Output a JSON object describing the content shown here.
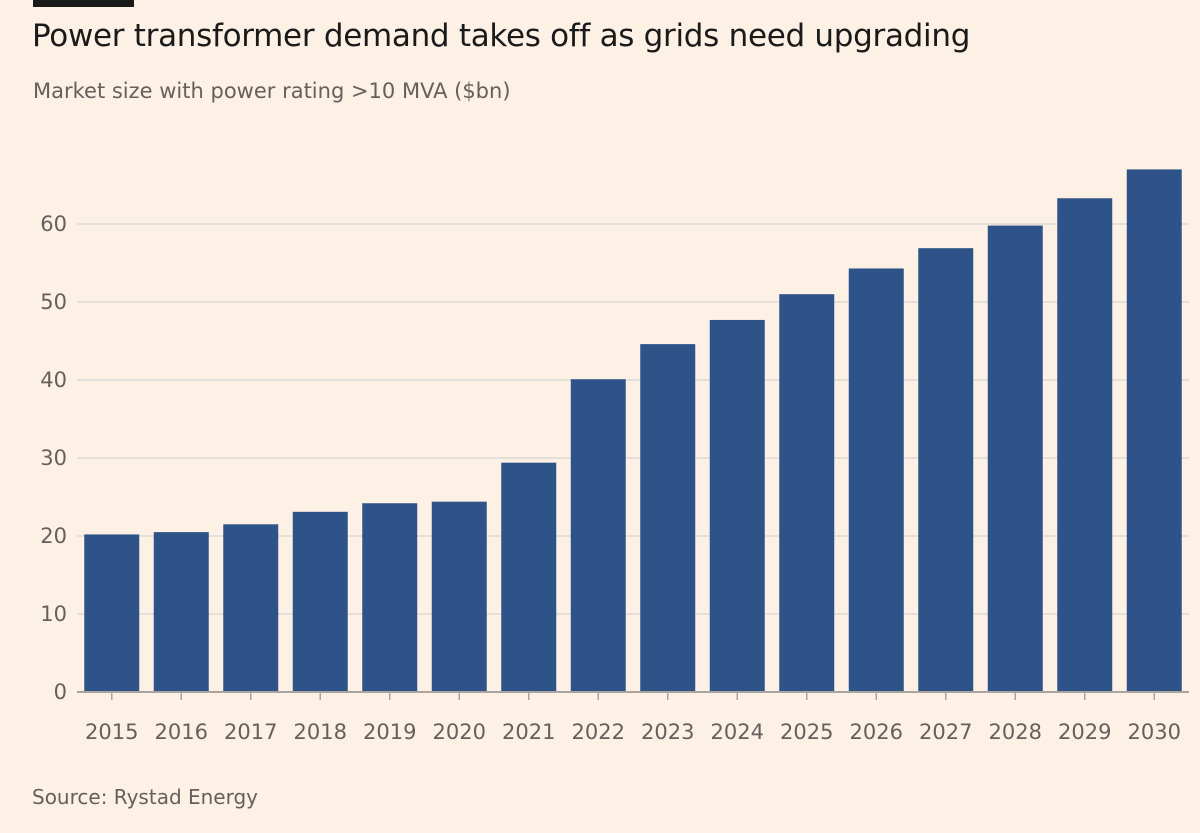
{
  "header": {
    "title": "Power transformer demand takes off as grids need upgrading",
    "subtitle": "Market size with power rating >10 MVA ($bn)"
  },
  "footer": {
    "source": "Source: Rystad Energy"
  },
  "colors": {
    "background": "#fdf1e6",
    "bar": "#2e5388",
    "grid": "#ddd9d6",
    "text": "#66605c"
  },
  "chart_data": {
    "type": "bar",
    "title": "Power transformer demand takes off as grids need upgrading",
    "subtitle": "Market size with power rating >10 MVA ($bn)",
    "xlabel": "",
    "ylabel": "",
    "categories": [
      "2015",
      "2016",
      "2017",
      "2018",
      "2019",
      "2020",
      "2021",
      "2022",
      "2023",
      "2024",
      "2025",
      "2026",
      "2027",
      "2028",
      "2029",
      "2030"
    ],
    "values": [
      20.2,
      20.5,
      21.5,
      23.1,
      24.2,
      24.4,
      29.4,
      40.1,
      44.6,
      47.7,
      51.0,
      54.3,
      56.9,
      59.8,
      63.3,
      67.0
    ],
    "yticks": [
      0,
      10,
      20,
      30,
      40,
      50,
      60
    ],
    "ylim": [
      0,
      67
    ],
    "grid": true,
    "legend": "none"
  }
}
